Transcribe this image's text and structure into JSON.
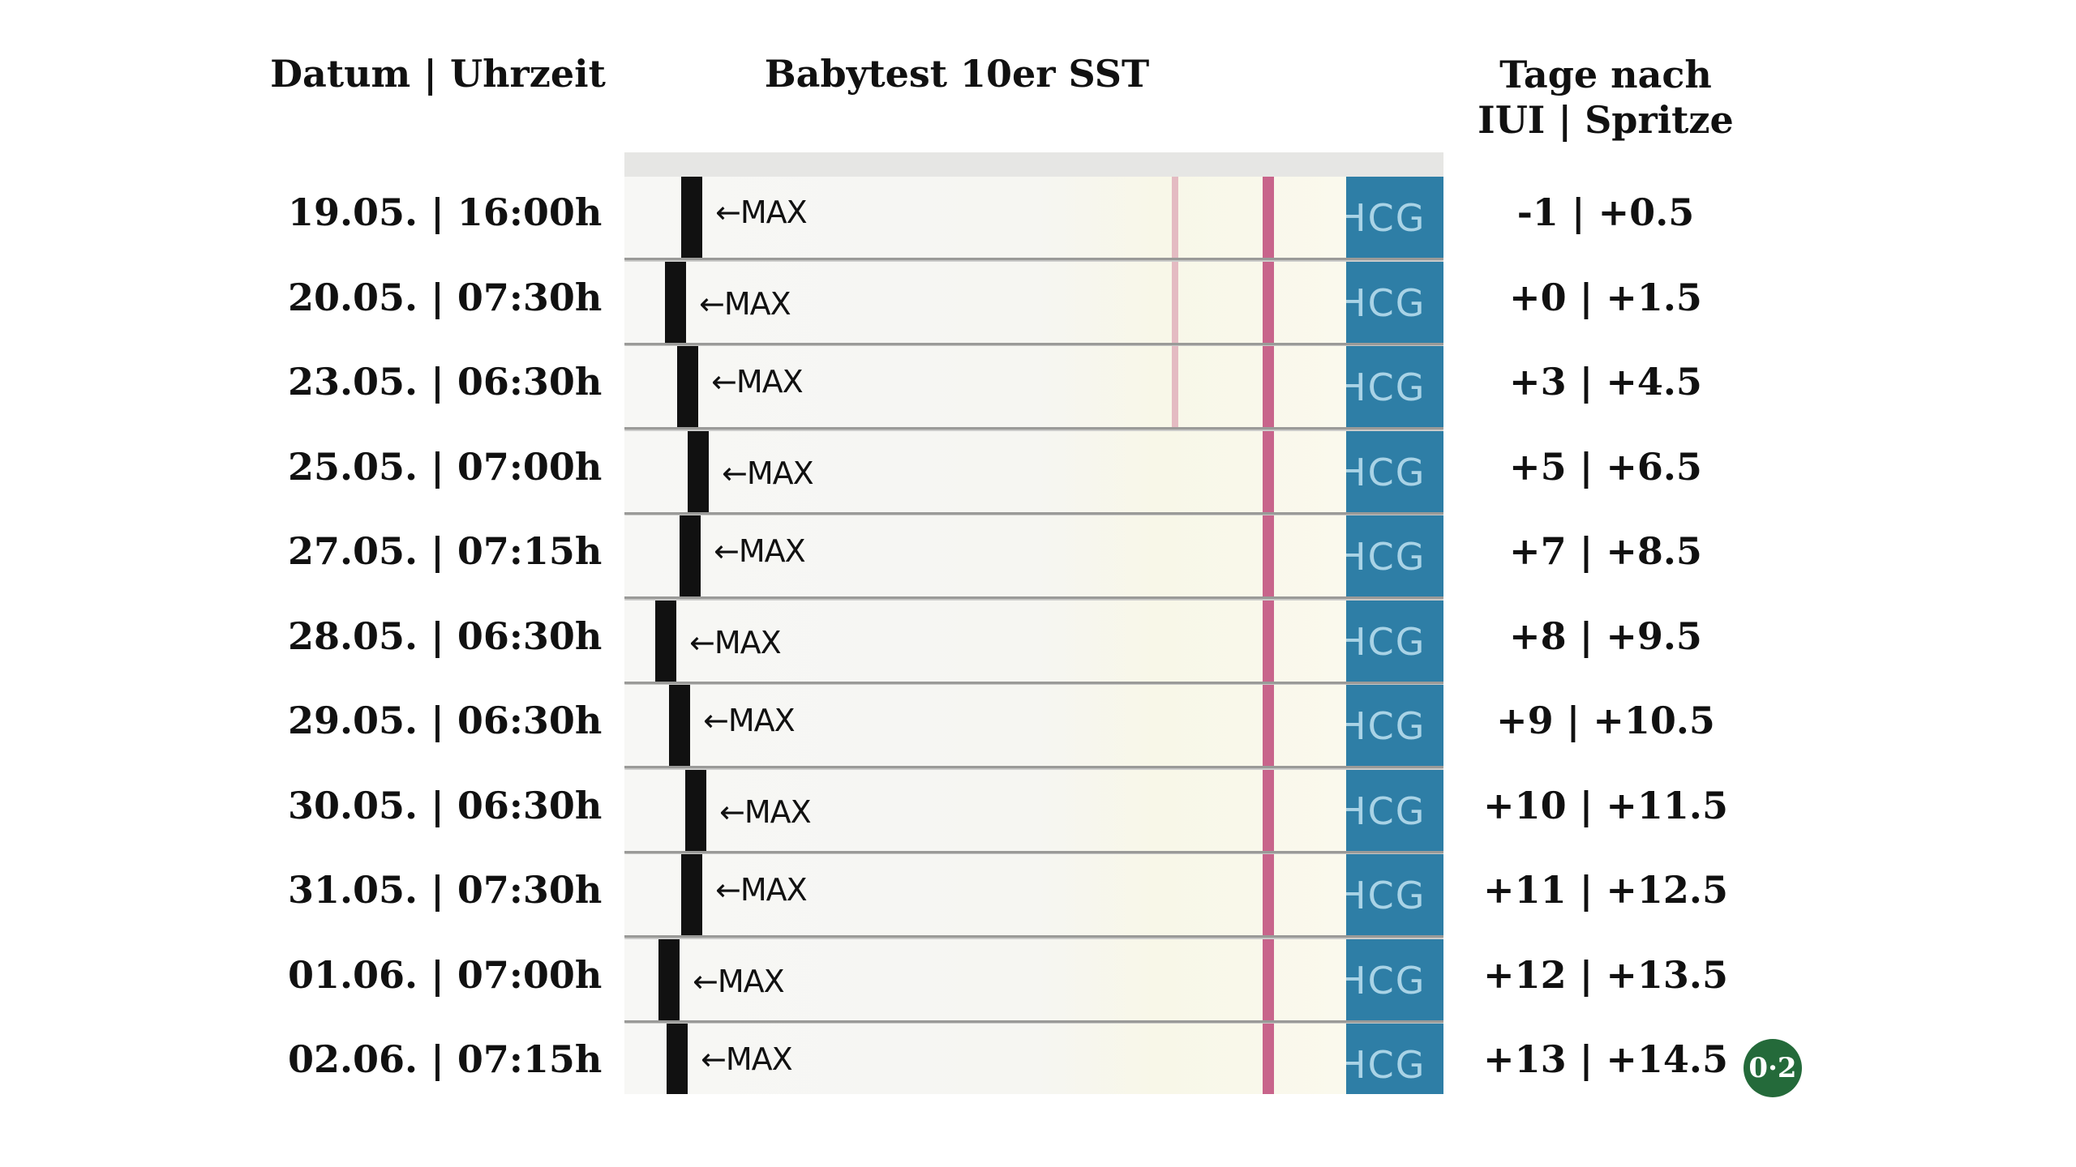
{
  "headers": {
    "date_time": "Datum | Uhrzeit",
    "test": "Babytest 10er SST",
    "days_line1": "Tage nach",
    "days_line2": "IUI | Spritze"
  },
  "rows": [
    {
      "date_time": "19.05. | 16:00h",
      "days": "-1  | +0.5"
    },
    {
      "date_time": "20.05. | 07:30h",
      "days": "+0 | +1.5"
    },
    {
      "date_time": "23.05. | 06:30h",
      "days": "+3 | +4.5"
    },
    {
      "date_time": "25.05. | 07:00h",
      "days": "+5 | +6.5"
    },
    {
      "date_time": "27.05. | 07:15h",
      "days": "+7 | +8.5"
    },
    {
      "date_time": "28.05. | 06:30h",
      "days": "+8 | +9.5"
    },
    {
      "date_time": "29.05. | 06:30h",
      "days": "+9 | +10.5"
    },
    {
      "date_time": "30.05. | 06:30h",
      "days": "+10 | +11.5"
    },
    {
      "date_time": "31.05. | 07:30h",
      "days": "+11 | +12.5"
    },
    {
      "date_time": "01.06. | 07:00h",
      "days": "+12 | +13.5"
    },
    {
      "date_time": "02.06. | 07:15h",
      "days": "+13 | +14.5"
    }
  ],
  "strip": {
    "max_label": "←MAX",
    "pad_label": "HCG",
    "line_color": "#c04a7a",
    "pad_color": "#2e7ea6"
  },
  "logo": {
    "text": "0·2",
    "color": "#246a3a"
  }
}
